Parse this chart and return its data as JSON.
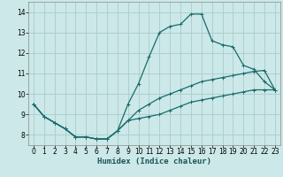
{
  "xlabel": "Humidex (Indice chaleur)",
  "bg_color": "#cce8e8",
  "grid_color": "#aacccc",
  "line_color": "#1a6b6b",
  "xlim": [
    -0.5,
    23.5
  ],
  "ylim": [
    7.5,
    14.5
  ],
  "xticks": [
    0,
    1,
    2,
    3,
    4,
    5,
    6,
    7,
    8,
    9,
    10,
    11,
    12,
    13,
    14,
    15,
    16,
    17,
    18,
    19,
    20,
    21,
    22,
    23
  ],
  "yticks": [
    8,
    9,
    10,
    11,
    12,
    13,
    14
  ],
  "line1_x": [
    0,
    1,
    2,
    3,
    4,
    5,
    6,
    7,
    8,
    9,
    10,
    11,
    12,
    13,
    14,
    15,
    16,
    17,
    18,
    19,
    20,
    21,
    22,
    23
  ],
  "line1_y": [
    9.5,
    8.9,
    8.6,
    8.3,
    7.9,
    7.9,
    7.8,
    7.8,
    8.2,
    9.5,
    10.5,
    11.8,
    13.0,
    13.3,
    13.4,
    13.9,
    13.9,
    12.6,
    12.4,
    12.3,
    11.4,
    11.2,
    10.6,
    10.2
  ],
  "line2_x": [
    0,
    1,
    2,
    3,
    4,
    5,
    6,
    7,
    8,
    9,
    10,
    11,
    12,
    13,
    14,
    15,
    16,
    17,
    18,
    19,
    20,
    21,
    22,
    23
  ],
  "line2_y": [
    9.5,
    8.9,
    8.6,
    8.3,
    7.9,
    7.9,
    7.8,
    7.8,
    8.2,
    8.7,
    8.8,
    8.9,
    9.0,
    9.2,
    9.4,
    9.6,
    9.7,
    9.8,
    9.9,
    10.0,
    10.1,
    10.2,
    10.2,
    10.2
  ],
  "line3_x": [
    0,
    1,
    2,
    3,
    4,
    5,
    6,
    7,
    8,
    9,
    10,
    11,
    12,
    13,
    14,
    15,
    16,
    17,
    18,
    19,
    20,
    21,
    22,
    23
  ],
  "line3_y": [
    9.5,
    8.9,
    8.6,
    8.3,
    7.9,
    7.9,
    7.8,
    7.8,
    8.2,
    8.7,
    9.2,
    9.5,
    9.8,
    10.0,
    10.2,
    10.4,
    10.6,
    10.7,
    10.8,
    10.9,
    11.0,
    11.1,
    11.15,
    10.2
  ],
  "marker_size": 2.5,
  "line_width": 0.9,
  "xlabel_fontsize": 6.5,
  "tick_fontsize": 5.5
}
